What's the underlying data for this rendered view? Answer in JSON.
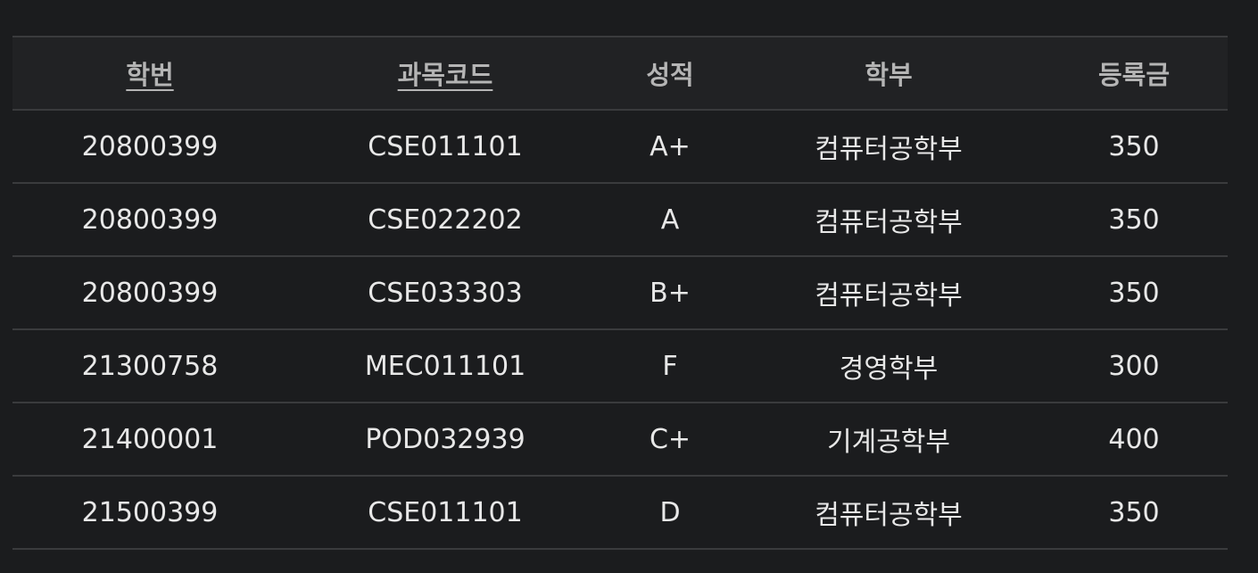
{
  "table": {
    "headers": [
      {
        "label": "학번",
        "sortable": true
      },
      {
        "label": "과목코드",
        "sortable": true
      },
      {
        "label": "성적",
        "sortable": false
      },
      {
        "label": "학부",
        "sortable": false
      },
      {
        "label": "등록금",
        "sortable": false
      }
    ],
    "rows": [
      {
        "student_id": "20800399",
        "course_code": "CSE011101",
        "grade": "A+",
        "department": "컴퓨터공학부",
        "tuition": "350"
      },
      {
        "student_id": "20800399",
        "course_code": "CSE022202",
        "grade": "A",
        "department": "컴퓨터공학부",
        "tuition": "350"
      },
      {
        "student_id": "20800399",
        "course_code": "CSE033303",
        "grade": "B+",
        "department": "컴퓨터공학부",
        "tuition": "350"
      },
      {
        "student_id": "21300758",
        "course_code": "MEC011101",
        "grade": "F",
        "department": "경영학부",
        "tuition": "300"
      },
      {
        "student_id": "21400001",
        "course_code": "POD032939",
        "grade": "C+",
        "department": "기계공학부",
        "tuition": "400"
      },
      {
        "student_id": "21500399",
        "course_code": "CSE011101",
        "grade": "D",
        "department": "컴퓨터공학부",
        "tuition": "350"
      }
    ]
  },
  "colors": {
    "background": "#1b1c1e",
    "header_background": "#212224",
    "border": "#3a3b3d",
    "header_text": "#b5b5b5",
    "cell_text": "#e8e8e8"
  }
}
